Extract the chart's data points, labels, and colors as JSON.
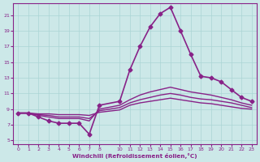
{
  "xlabel": "Windchill (Refroidissement éolien,°C)",
  "ylabel": "",
  "bg_color": "#cce8e8",
  "grid_color": "#aad4d4",
  "line_color": "#882288",
  "xticks": [
    0,
    1,
    2,
    3,
    4,
    5,
    6,
    7,
    8,
    10,
    11,
    12,
    13,
    14,
    15,
    16,
    17,
    18,
    19,
    20,
    21,
    22,
    23
  ],
  "yticks": [
    5,
    7,
    9,
    11,
    13,
    15,
    17,
    19,
    21
  ],
  "ylim": [
    4.5,
    22.5
  ],
  "xlim": [
    -0.5,
    23.5
  ],
  "lines": [
    {
      "x": [
        0,
        1,
        2,
        3,
        4,
        5,
        6,
        7,
        8,
        10,
        11,
        12,
        13,
        14,
        15,
        16,
        17,
        18,
        19,
        20,
        21,
        22,
        23
      ],
      "y": [
        8.5,
        8.5,
        8.0,
        7.5,
        7.2,
        7.2,
        7.2,
        5.8,
        9.5,
        10.0,
        14.0,
        17.0,
        19.5,
        21.2,
        22.0,
        19.0,
        16.0,
        13.2,
        13.0,
        12.5,
        11.5,
        10.5,
        10.0
      ],
      "marker": "D",
      "markersize": 2.5,
      "linewidth": 1.2
    },
    {
      "x": [
        0,
        1,
        2,
        3,
        4,
        5,
        6,
        7,
        8,
        10,
        11,
        12,
        13,
        14,
        15,
        16,
        17,
        18,
        19,
        20,
        21,
        22,
        23
      ],
      "y": [
        8.5,
        8.5,
        8.2,
        8.0,
        7.8,
        7.8,
        7.8,
        7.5,
        9.0,
        9.5,
        10.2,
        10.8,
        11.2,
        11.5,
        11.8,
        11.5,
        11.2,
        11.0,
        10.8,
        10.5,
        10.2,
        9.8,
        9.5
      ],
      "marker": null,
      "markersize": 0,
      "linewidth": 1.0
    },
    {
      "x": [
        0,
        1,
        2,
        3,
        4,
        5,
        6,
        7,
        8,
        10,
        11,
        12,
        13,
        14,
        15,
        16,
        17,
        18,
        19,
        20,
        21,
        22,
        23
      ],
      "y": [
        8.5,
        8.5,
        8.3,
        8.2,
        8.0,
        8.0,
        8.0,
        7.8,
        8.8,
        9.2,
        9.8,
        10.2,
        10.5,
        10.8,
        11.0,
        10.8,
        10.5,
        10.3,
        10.2,
        10.0,
        9.8,
        9.5,
        9.2
      ],
      "marker": null,
      "markersize": 0,
      "linewidth": 1.0
    },
    {
      "x": [
        0,
        1,
        2,
        3,
        4,
        5,
        6,
        7,
        8,
        10,
        11,
        12,
        13,
        14,
        15,
        16,
        17,
        18,
        19,
        20,
        21,
        22,
        23
      ],
      "y": [
        8.5,
        8.5,
        8.4,
        8.4,
        8.3,
        8.3,
        8.3,
        8.2,
        8.6,
        8.9,
        9.5,
        9.8,
        10.0,
        10.2,
        10.4,
        10.2,
        10.0,
        9.8,
        9.7,
        9.5,
        9.3,
        9.1,
        9.0
      ],
      "marker": null,
      "markersize": 0,
      "linewidth": 1.0
    }
  ]
}
